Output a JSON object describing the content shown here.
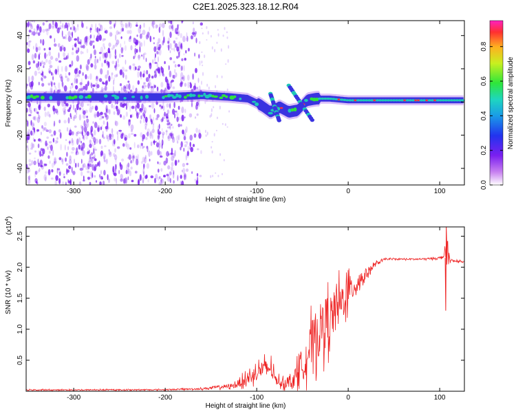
{
  "title": "C2E1.2025.323.18.12.R04",
  "chart_data": [
    {
      "type": "heatmap",
      "xlabel": "Height of straight line (km)",
      "ylabel": "Frequency (Hz)",
      "xlim": [
        -352,
        127
      ],
      "ylim": [
        -50,
        49
      ],
      "xticks": [
        -300,
        -200,
        -100,
        0,
        100
      ],
      "xtick_labels": [
        "-300",
        "-200",
        "-100",
        "0",
        "100"
      ],
      "yticks": [
        -40,
        -20,
        0,
        20,
        40
      ],
      "ytick_labels": [
        "-40",
        "-20",
        "0",
        "20",
        "40"
      ],
      "colormap": "rainbow",
      "colorbar": {
        "label": "Normalized spectral amplitude",
        "range": [
          0,
          0.95
        ],
        "ticks": [
          0.0,
          0.2,
          0.4,
          0.6,
          0.8
        ],
        "tick_labels": [
          "0.0",
          "0.2",
          "0.4",
          "0.6",
          "0.8"
        ]
      },
      "ridge": {
        "x": [
          -350,
          -300,
          -250,
          -200,
          -160,
          -130,
          -110,
          -95,
          -85,
          -75,
          -65,
          -55,
          -45,
          -35,
          -20,
          0,
          50,
          100,
          127
        ],
        "y": [
          3,
          3,
          3,
          3,
          4,
          3,
          2,
          -2,
          -6,
          -3,
          -6,
          -5,
          1,
          2,
          2,
          1,
          1,
          1,
          1
        ]
      },
      "noise_region": {
        "x": [
          -352,
          -160
        ],
        "freq_range": [
          -50,
          49
        ]
      },
      "colors": {
        "noise": "#7a1ff0",
        "low": "#3a33e0",
        "mid": "#1fc8b8",
        "high": "#ff3040"
      }
    },
    {
      "type": "line",
      "xlabel": "Height of straight line (km)",
      "ylabel": "SNR (10 * v/v)",
      "y_multiplier": "(x10",
      "y_multiplier_exp": "4",
      "y_multiplier_close": ")",
      "xlim": [
        -352,
        127
      ],
      "ylim": [
        0,
        26500
      ],
      "xticks": [
        -300,
        -200,
        -100,
        0,
        100
      ],
      "xtick_labels": [
        "-300",
        "-200",
        "-100",
        "0",
        "100"
      ],
      "yticks": [
        5000,
        10000,
        15000,
        20000,
        25000
      ],
      "ytick_labels": [
        "0.5",
        "1.0",
        "1.5",
        "2.0",
        "2.5"
      ],
      "color": "#ee2222",
      "envelope": {
        "x": [
          -352,
          -200,
          -160,
          -125,
          -110,
          -95,
          -85,
          -80,
          -70,
          -55,
          -45,
          -35,
          -25,
          -15,
          -5,
          0,
          10,
          20,
          30,
          40,
          60,
          80,
          100,
          105,
          108,
          112,
          127
        ],
        "center": [
          200,
          250,
          400,
          900,
          2000,
          3500,
          3800,
          2000,
          1200,
          2500,
          6000,
          9000,
          11000,
          12500,
          15000,
          16000,
          17500,
          19000,
          20500,
          21300,
          21300,
          21300,
          21500,
          21800,
          22500,
          21000,
          20900
        ],
        "spread": [
          150,
          150,
          250,
          700,
          1800,
          2500,
          2800,
          1500,
          1200,
          3500,
          6000,
          7500,
          7500,
          6500,
          5500,
          4500,
          3000,
          1500,
          600,
          250,
          200,
          250,
          300,
          600,
          4500,
          400,
          150
        ]
      }
    }
  ]
}
